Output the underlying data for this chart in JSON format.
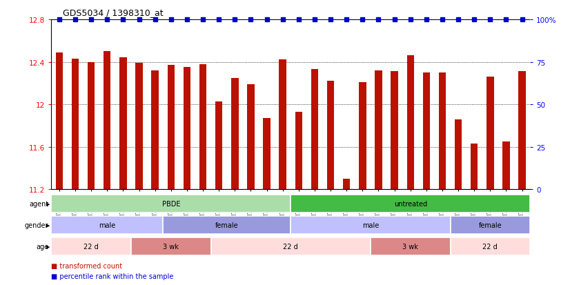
{
  "title": "GDS5034 / 1398310_at",
  "samples": [
    "GSM796783",
    "GSM796784",
    "GSM796785",
    "GSM796786",
    "GSM796787",
    "GSM796806",
    "GSM796807",
    "GSM796808",
    "GSM796809",
    "GSM796810",
    "GSM796796",
    "GSM796797",
    "GSM796798",
    "GSM796799",
    "GSM796800",
    "GSM796781",
    "GSM796788",
    "GSM796789",
    "GSM796790",
    "GSM796791",
    "GSM796801",
    "GSM796802",
    "GSM796803",
    "GSM796804",
    "GSM796805",
    "GSM796782",
    "GSM796792",
    "GSM796793",
    "GSM796794",
    "GSM796795"
  ],
  "values": [
    12.49,
    12.43,
    12.4,
    12.5,
    12.44,
    12.39,
    12.32,
    12.37,
    12.35,
    12.38,
    12.03,
    12.25,
    12.19,
    11.87,
    12.42,
    11.93,
    12.33,
    12.22,
    11.3,
    12.21,
    12.32,
    12.31,
    12.46,
    12.3,
    12.3,
    11.86,
    11.63,
    12.26,
    11.65,
    12.31
  ],
  "ylim_left": [
    11.2,
    12.8
  ],
  "ylim_right": [
    0,
    100
  ],
  "yticks_left": [
    11.2,
    11.6,
    12.0,
    12.4,
    12.8
  ],
  "yticks_right": [
    0,
    25,
    50,
    75,
    100
  ],
  "bar_color": "#bb1100",
  "percentile_color": "#0000cc",
  "agent_groups": [
    {
      "label": "PBDE",
      "start": 0,
      "end": 15,
      "color": "#aaddaa"
    },
    {
      "label": "untreated",
      "start": 15,
      "end": 30,
      "color": "#44bb44"
    }
  ],
  "gender_groups": [
    {
      "label": "male",
      "start": 0,
      "end": 7,
      "color": "#c0c0ff"
    },
    {
      "label": "female",
      "start": 7,
      "end": 15,
      "color": "#9999dd"
    },
    {
      "label": "male",
      "start": 15,
      "end": 25,
      "color": "#c0c0ff"
    },
    {
      "label": "female",
      "start": 25,
      "end": 30,
      "color": "#9999dd"
    }
  ],
  "age_groups": [
    {
      "label": "22 d",
      "start": 0,
      "end": 5,
      "color": "#ffdddd"
    },
    {
      "label": "3 wk",
      "start": 5,
      "end": 10,
      "color": "#dd8888"
    },
    {
      "label": "22 d",
      "start": 10,
      "end": 20,
      "color": "#ffdddd"
    },
    {
      "label": "3 wk",
      "start": 20,
      "end": 25,
      "color": "#dd8888"
    },
    {
      "label": "22 d",
      "start": 25,
      "end": 30,
      "color": "#ffdddd"
    }
  ]
}
